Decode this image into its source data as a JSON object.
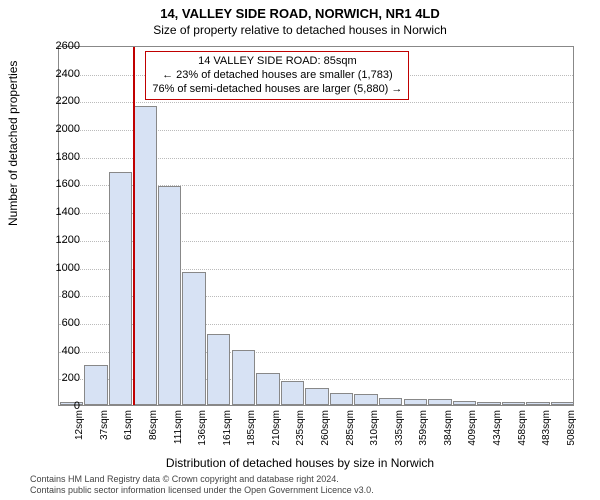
{
  "title_main": "14, VALLEY SIDE ROAD, NORWICH, NR1 4LD",
  "title_sub": "Size of property relative to detached houses in Norwich",
  "ylabel": "Number of detached properties",
  "xlabel": "Distribution of detached houses by size in Norwich",
  "footer_line1": "Contains HM Land Registry data © Crown copyright and database right 2024.",
  "footer_line2": "Contains public sector information licensed under the Open Government Licence v3.0.",
  "chart": {
    "type": "bar",
    "ylim": [
      0,
      2600
    ],
    "ytick_step": 200,
    "bar_fill": "#d7e2f4",
    "bar_border": "#888888",
    "grid_color": "#bbbbbb",
    "background_color": "#ffffff",
    "marker_color": "#c00000",
    "x_categories": [
      "12sqm",
      "37sqm",
      "61sqm",
      "86sqm",
      "111sqm",
      "136sqm",
      "161sqm",
      "185sqm",
      "210sqm",
      "235sqm",
      "260sqm",
      "285sqm",
      "310sqm",
      "335sqm",
      "359sqm",
      "384sqm",
      "409sqm",
      "434sqm",
      "458sqm",
      "483sqm",
      "508sqm"
    ],
    "values": [
      20,
      290,
      1680,
      2160,
      1580,
      960,
      510,
      400,
      230,
      170,
      120,
      90,
      80,
      50,
      40,
      40,
      30,
      20,
      20,
      20,
      20
    ],
    "marker_index": 3,
    "annot": {
      "line1": "14 VALLEY SIDE ROAD: 85sqm",
      "line2": "← 23% of detached houses are smaller (1,783)",
      "line3": "76% of semi-detached houses are larger (5,880) →"
    }
  }
}
